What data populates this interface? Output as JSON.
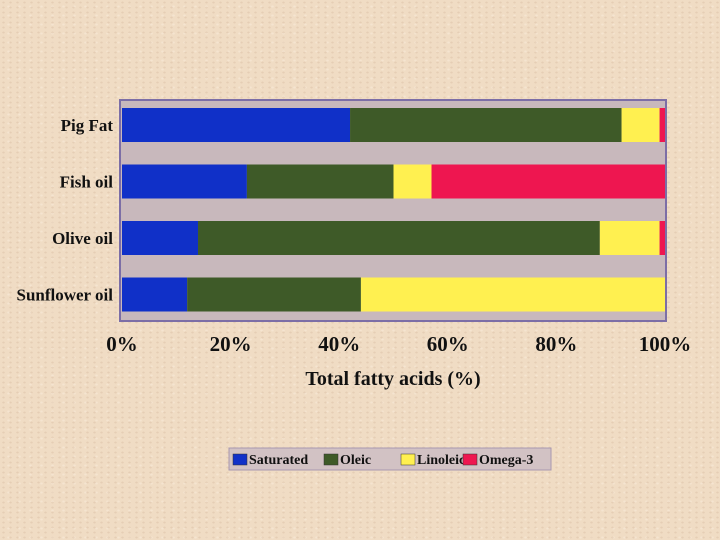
{
  "chart_data": {
    "type": "bar",
    "orientation": "horizontal",
    "stacked": true,
    "title": "",
    "xlabel": "Total fatty acids (%)",
    "ylabel": "",
    "xlim": [
      0,
      100
    ],
    "x_ticks": [
      "0%",
      "20%",
      "40%",
      "60%",
      "80%",
      "100%"
    ],
    "categories": [
      "Pig Fat",
      "Fish oil",
      "Olive oil",
      "Sunflower oil"
    ],
    "series": [
      {
        "name": "Saturated",
        "color": "#1030c8",
        "values": [
          42,
          23,
          14,
          12
        ]
      },
      {
        "name": "Oleic",
        "color": "#3e5a28",
        "values": [
          50,
          27,
          74,
          32
        ]
      },
      {
        "name": "Linoleic",
        "color": "#fff050",
        "values": [
          7,
          7,
          11,
          56
        ]
      },
      {
        "name": "Omega-3",
        "color": "#ee1650",
        "values": [
          1,
          43,
          1,
          0
        ]
      }
    ],
    "legend_position": "bottom",
    "grid": false,
    "plot_background": "#c8b8bc",
    "plot_border": "#7c6ea6"
  }
}
